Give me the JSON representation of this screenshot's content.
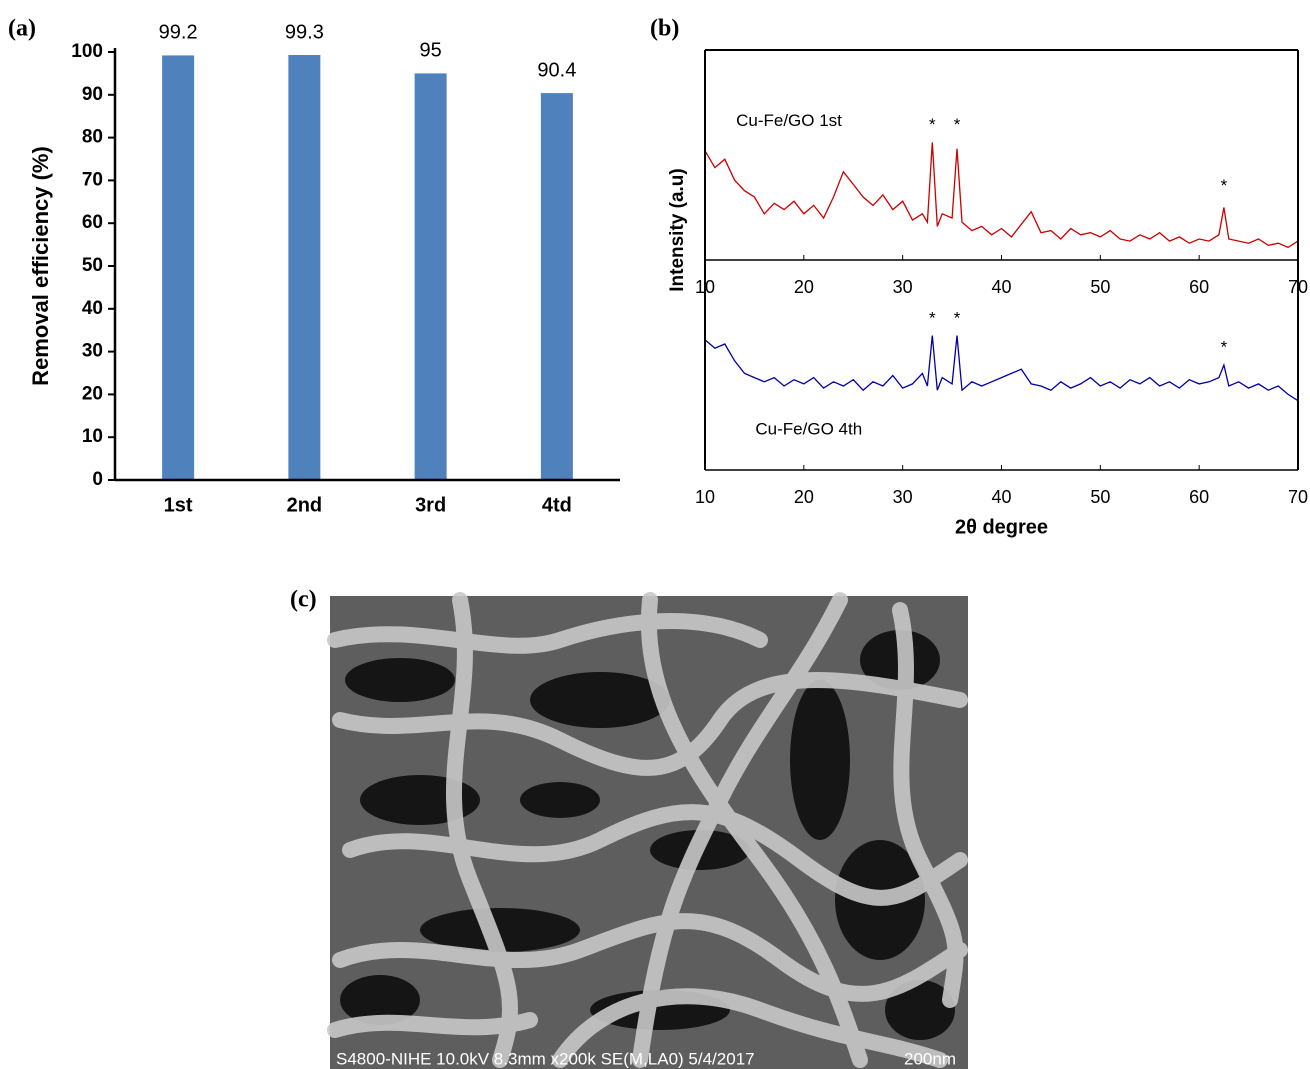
{
  "chart_data": [
    {
      "type": "bar",
      "panel_label": "(a)",
      "y_label": "Removal efficiency (%)",
      "categories": [
        "1st",
        "2nd",
        "3rd",
        "4td"
      ],
      "values": [
        99.2,
        99.3,
        95,
        90.4
      ],
      "color": "#4f81bd",
      "ylim": [
        0,
        100
      ],
      "yticks": [
        0,
        10,
        20,
        30,
        40,
        50,
        60,
        70,
        80,
        90,
        100
      ]
    },
    {
      "type": "line",
      "panel_label": "(b)",
      "y_label": "Intensity (a.u)",
      "x": [
        10,
        11,
        12,
        13,
        14,
        15,
        16,
        17,
        18,
        19,
        20,
        21,
        22,
        23,
        24,
        25,
        26,
        27,
        28,
        29,
        30,
        31,
        32,
        32.5,
        33,
        33.5,
        34,
        35,
        35.5,
        36,
        37,
        38,
        39,
        40,
        41,
        42,
        43,
        44,
        45,
        46,
        47,
        48,
        49,
        50,
        51,
        52,
        53,
        54,
        55,
        56,
        57,
        58,
        59,
        60,
        61,
        62,
        62.5,
        63,
        64,
        65,
        66,
        67,
        68,
        69,
        70
      ],
      "series": [
        {
          "name": "Cu-Fe/GO 1st",
          "color": "#cc0000",
          "values": [
            52,
            44,
            48,
            38,
            33,
            30,
            22,
            27,
            24,
            28,
            22,
            26,
            20,
            30,
            42,
            36,
            30,
            26,
            31,
            24,
            28,
            19,
            22,
            18,
            56,
            16,
            22,
            20,
            53,
            18,
            14,
            16,
            12,
            15,
            11,
            17,
            23,
            13,
            14,
            10,
            15,
            12,
            13,
            11,
            14,
            10,
            9,
            12,
            10,
            13,
            9,
            11,
            8,
            10,
            9,
            12,
            25,
            10,
            9,
            8,
            10,
            7,
            8,
            6,
            9
          ]
        }
      ],
      "annotations": [
        {
          "text": "Cu-Fe/GO 1st",
          "x": 18.5,
          "y": 66
        },
        {
          "text": "*",
          "x": 33,
          "y": 64
        },
        {
          "text": "*",
          "x": 35.5,
          "y": 64
        },
        {
          "text": "*",
          "x": 62.5,
          "y": 35
        }
      ],
      "xlim": [
        10,
        70
      ],
      "ylim": [
        0,
        100
      ],
      "xticks": [
        10,
        20,
        30,
        40,
        50,
        60,
        70
      ]
    },
    {
      "type": "line",
      "x_label": "2θ degree",
      "x": [
        10,
        11,
        12,
        13,
        14,
        15,
        16,
        17,
        18,
        19,
        20,
        21,
        22,
        23,
        24,
        25,
        26,
        27,
        28,
        29,
        30,
        31,
        32,
        32.5,
        33,
        33.5,
        34,
        35,
        35.5,
        36,
        37,
        38,
        39,
        40,
        41,
        42,
        43,
        44,
        45,
        46,
        47,
        48,
        49,
        50,
        51,
        52,
        53,
        54,
        55,
        56,
        57,
        58,
        59,
        60,
        61,
        62,
        62.5,
        63,
        64,
        65,
        66,
        67,
        68,
        69,
        70
      ],
      "series": [
        {
          "name": "Cu-Fe/GO 4th",
          "color": "#0000aa",
          "values": [
            62,
            58,
            60,
            52,
            46,
            44,
            42,
            44,
            40,
            43,
            41,
            44,
            39,
            42,
            40,
            43,
            38,
            42,
            40,
            45,
            39,
            41,
            46,
            40,
            64,
            38,
            44,
            41,
            64,
            38,
            42,
            40,
            42,
            44,
            46,
            48,
            41,
            40,
            38,
            42,
            39,
            41,
            44,
            40,
            42,
            39,
            43,
            41,
            44,
            40,
            42,
            39,
            43,
            41,
            42,
            44,
            50,
            40,
            42,
            39,
            41,
            38,
            40,
            36,
            33
          ]
        }
      ],
      "annotations": [
        {
          "text": "Cu-Fe/GO 4th",
          "x": 20.5,
          "y": 19
        },
        {
          "text": "*",
          "x": 33,
          "y": 72
        },
        {
          "text": "*",
          "x": 35.5,
          "y": 72
        },
        {
          "text": "*",
          "x": 62.5,
          "y": 58
        }
      ],
      "xlim": [
        10,
        70
      ],
      "ylim": [
        0,
        100
      ],
      "xticks": [
        10,
        20,
        30,
        40,
        50,
        60,
        70
      ]
    }
  ],
  "image": {
    "panel_label": "(c)",
    "caption": "S4800-NIHE 10.0kV 8.3mm x200k SE(M,LA0) 5/4/2017",
    "scale_bar": "200nm"
  }
}
